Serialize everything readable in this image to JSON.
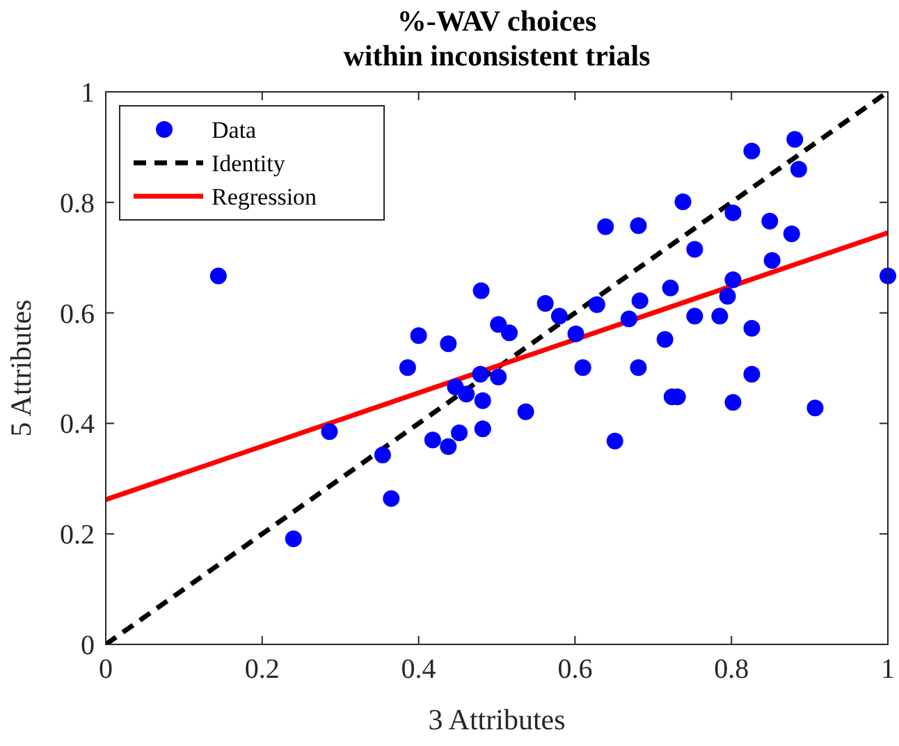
{
  "chart_data": {
    "type": "scatter",
    "title": "%-WAV choices\nwithin inconsistent trials",
    "xlabel": "3 Attributes",
    "ylabel": "5 Attributes",
    "xlim": [
      0,
      1
    ],
    "ylim": [
      0,
      1
    ],
    "xticks": [
      0,
      0.2,
      0.4,
      0.6,
      0.8,
      1
    ],
    "yticks": [
      0,
      0.2,
      0.4,
      0.6,
      0.8,
      1
    ],
    "grid": false,
    "legend": "top left",
    "series": [
      {
        "name": "Data",
        "marker": "circle",
        "color": "#0000ff",
        "x": [
          0.144,
          0.24,
          0.286,
          0.365,
          0.354,
          0.386,
          0.4,
          0.438,
          0.418,
          0.438,
          0.452,
          0.447,
          0.461,
          0.48,
          0.502,
          0.516,
          0.479,
          0.502,
          0.482,
          0.482,
          0.537,
          0.562,
          0.58,
          0.601,
          0.61,
          0.628,
          0.639,
          0.651,
          0.669,
          0.681,
          0.683,
          0.681,
          0.715,
          0.722,
          0.724,
          0.731,
          0.738,
          0.753,
          0.753,
          0.785,
          0.795,
          0.802,
          0.802,
          0.802,
          0.826,
          0.826,
          0.849,
          0.852,
          0.877,
          0.886,
          0.907,
          1.0,
          0.826,
          0.881
        ],
        "values": [
          0.667,
          0.191,
          0.385,
          0.264,
          0.343,
          0.501,
          0.559,
          0.544,
          0.37,
          0.358,
          0.383,
          0.466,
          0.453,
          0.64,
          0.579,
          0.564,
          0.489,
          0.484,
          0.441,
          0.39,
          0.421,
          0.617,
          0.594,
          0.562,
          0.501,
          0.615,
          0.756,
          0.368,
          0.589,
          0.758,
          0.622,
          0.501,
          0.552,
          0.645,
          0.448,
          0.448,
          0.801,
          0.715,
          0.594,
          0.594,
          0.63,
          0.66,
          0.781,
          0.438,
          0.572,
          0.489,
          0.766,
          0.695,
          0.743,
          0.86,
          0.428,
          0.667,
          0.893,
          0.914
        ]
      },
      {
        "name": "Identity",
        "type": "line",
        "line_style": "dashed",
        "color": "#000000",
        "x": [
          0,
          1
        ],
        "values": [
          0,
          1
        ]
      },
      {
        "name": "Regression",
        "type": "line",
        "line_style": "solid",
        "color": "#ff0000",
        "x": [
          0,
          1
        ],
        "values": [
          0.262,
          0.745
        ]
      }
    ]
  }
}
